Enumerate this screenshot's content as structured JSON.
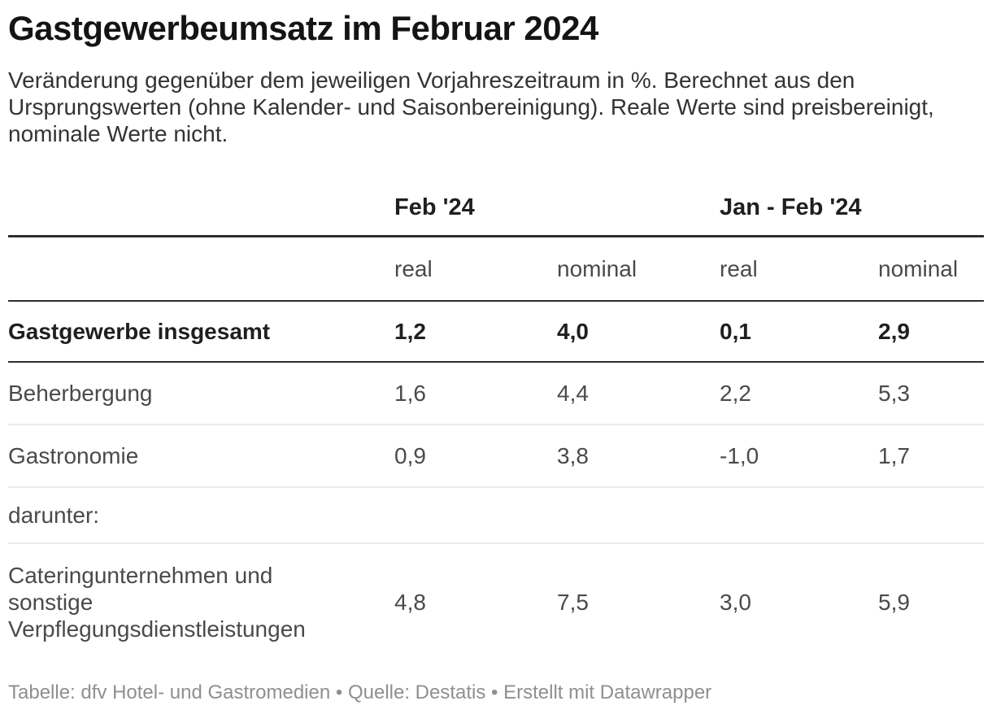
{
  "header": {
    "title": "Gastgewerbeumsatz im Februar 2024",
    "description": "Veränderung gegenüber dem jeweiligen Vorjahreszeitraum in %. Berechnet aus den\nUrsprungswerten (ohne Kalender- und Saisonbereinigung). Reale Werte sind preisbereinigt,\nnominale Werte nicht."
  },
  "table": {
    "column_groups": [
      {
        "label": "Feb '24"
      },
      {
        "label": "Jan - Feb '24"
      }
    ],
    "columns": [
      "real",
      "nominal",
      "real",
      "nominal"
    ],
    "rows": [
      {
        "label": "Gastgewerbe insgesamt",
        "values": [
          "1,2",
          "4,0",
          "0,1",
          "2,9"
        ],
        "bold": true
      },
      {
        "label": "Beherbergung",
        "values": [
          "1,6",
          "4,4",
          "2,2",
          "5,3"
        ],
        "bold": false
      },
      {
        "label": "Gastronomie",
        "values": [
          "0,9",
          "3,8",
          "-1,0",
          "1,7"
        ],
        "bold": false
      },
      {
        "label": "darunter:",
        "values": [
          "",
          "",
          "",
          ""
        ],
        "bold": false
      },
      {
        "label": "Cateringunternehmen und\nsonstige\nVerpflegungsdienstleistungen",
        "values": [
          "4,8",
          "7,5",
          "3,0",
          "5,9"
        ],
        "bold": false
      }
    ]
  },
  "footer": {
    "text": "Tabelle: dfv Hotel- und Gastromedien • Quelle: Destatis • Erstellt mit Datawrapper"
  },
  "colors": {
    "border-dark": "#2e2e2e",
    "border-light": "#ebebeb",
    "title-color": "#141414",
    "desc-color": "#333333",
    "body-color": "#4a4a4a",
    "strong-color": "#1f1f1f",
    "footer-color": "#8f8f8f",
    "bg": "#ffffff"
  },
  "chart_data": {
    "type": "table",
    "title": "Gastgewerbeumsatz im Februar 2024",
    "subtitle": "Veränderung gegenüber dem jeweiligen Vorjahreszeitraum in %. Berechnet aus den Ursprungswerten (ohne Kalender- und Saisonbereinigung). Reale Werte sind preisbereinigt, nominale Werte nicht.",
    "unit": "%",
    "column_groups": [
      {
        "label": "Feb '24",
        "columns": [
          "real",
          "nominal"
        ]
      },
      {
        "label": "Jan - Feb '24",
        "columns": [
          "real",
          "nominal"
        ]
      }
    ],
    "rows": [
      {
        "label": "Gastgewerbe insgesamt",
        "emphasis": true,
        "feb24_real": 1.2,
        "feb24_nominal": 4.0,
        "janfeb24_real": 0.1,
        "janfeb24_nominal": 2.9
      },
      {
        "label": "Beherbergung",
        "emphasis": false,
        "feb24_real": 1.6,
        "feb24_nominal": 4.4,
        "janfeb24_real": 2.2,
        "janfeb24_nominal": 5.3
      },
      {
        "label": "Gastronomie",
        "emphasis": false,
        "feb24_real": 0.9,
        "feb24_nominal": 3.8,
        "janfeb24_real": -1.0,
        "janfeb24_nominal": 1.7
      },
      {
        "label": "darunter:",
        "emphasis": false,
        "section_label_only": true
      },
      {
        "label": "Cateringunternehmen und sonstige Verpflegungsdienstleistungen",
        "emphasis": false,
        "feb24_real": 4.8,
        "feb24_nominal": 7.5,
        "janfeb24_real": 3.0,
        "janfeb24_nominal": 5.9
      }
    ],
    "source": "Destatis",
    "table_credit": "dfv Hotel- und Gastromedien",
    "tool_credit": "Erstellt mit Datawrapper"
  }
}
